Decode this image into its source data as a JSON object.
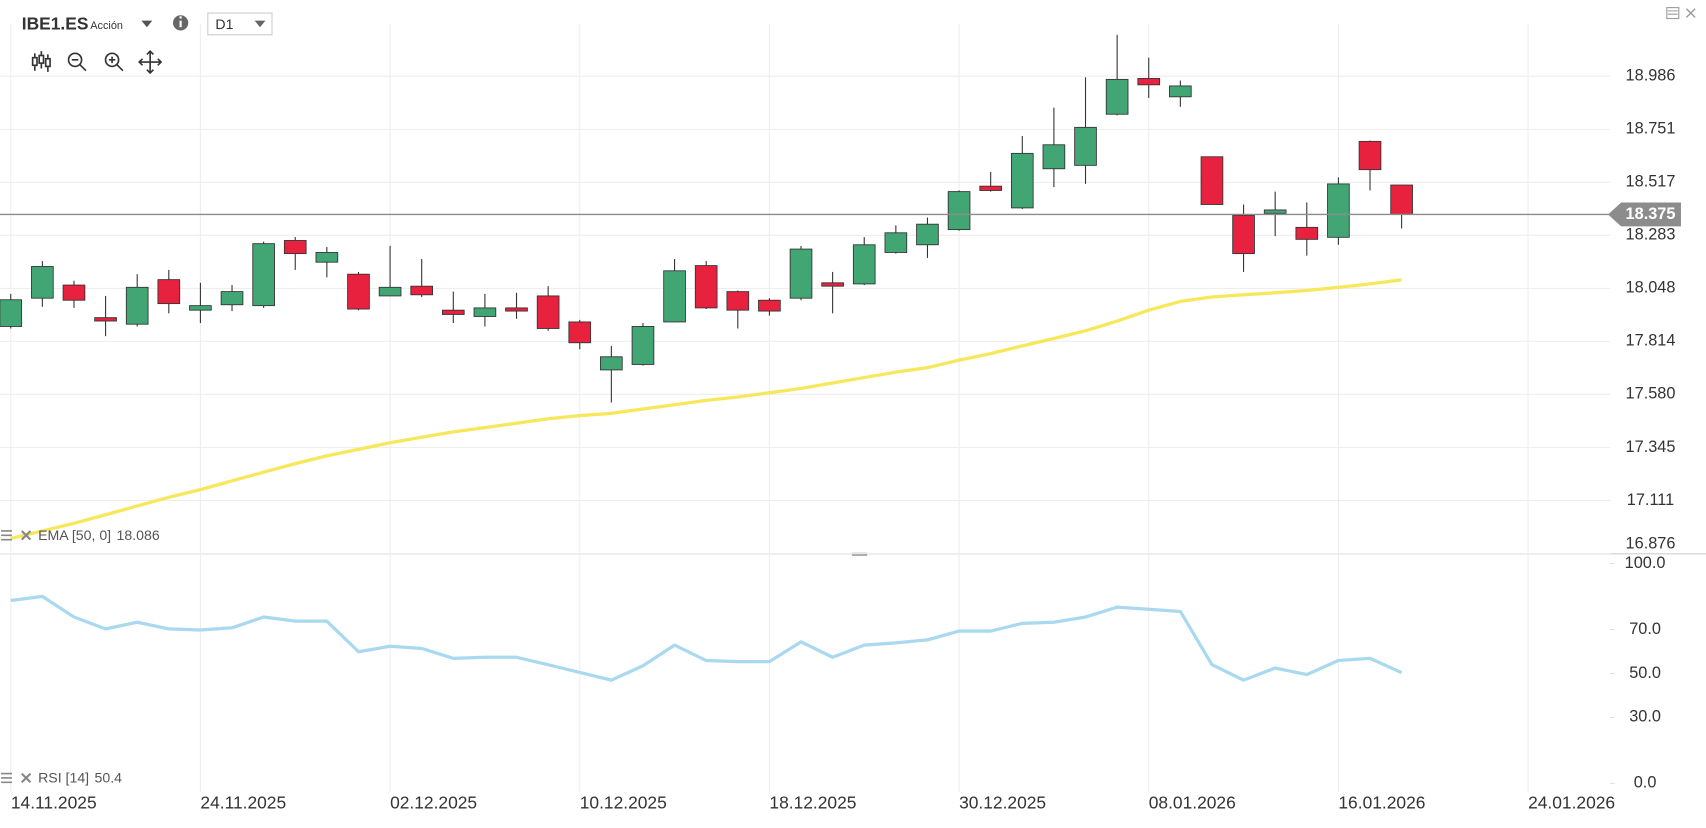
{
  "toolbar": {
    "symbol": "IBE1.ES",
    "kind": "Acción",
    "timeframe": "D1"
  },
  "chart_data": [
    {
      "type": "candlestick",
      "open": [
        17.88,
        18.005,
        18.063,
        17.919,
        17.89,
        18.087,
        17.952,
        17.976,
        17.972,
        18.26,
        18.164,
        18.111,
        18.015,
        18.058,
        17.952,
        17.924,
        17.962,
        18.015,
        17.9,
        17.688,
        17.712,
        17.9,
        18.149,
        18.034,
        17.996,
        18.005,
        18.073,
        18.068,
        18.207,
        18.241,
        18.308,
        18.5,
        18.404,
        18.577,
        18.592,
        18.818,
        18.976,
        18.895,
        18.63,
        18.371,
        18.38,
        18.318,
        18.274,
        18.698,
        18.505
      ],
      "high": [
        18.024,
        18.169,
        18.082,
        18.015,
        18.111,
        18.13,
        18.073,
        18.063,
        18.255,
        18.275,
        18.231,
        18.121,
        18.236,
        18.178,
        18.034,
        18.024,
        18.029,
        18.058,
        17.909,
        17.794,
        17.895,
        18.178,
        18.169,
        18.039,
        18.005,
        18.236,
        18.121,
        18.275,
        18.327,
        18.361,
        18.481,
        18.563,
        18.722,
        18.847,
        18.981,
        19.169,
        19.068,
        18.967,
        18.63,
        18.419,
        18.476,
        18.428,
        18.539,
        18.702,
        18.505
      ],
      "low": [
        17.871,
        17.967,
        17.962,
        17.837,
        17.88,
        17.938,
        17.895,
        17.948,
        17.962,
        18.13,
        18.097,
        17.952,
        18.015,
        18.01,
        17.895,
        17.88,
        17.914,
        17.861,
        17.779,
        17.544,
        17.707,
        17.9,
        17.957,
        17.871,
        17.928,
        17.996,
        17.938,
        18.063,
        18.202,
        18.183,
        18.303,
        18.476,
        18.399,
        18.496,
        18.51,
        18.813,
        18.89,
        18.851,
        18.419,
        18.121,
        18.279,
        18.193,
        18.241,
        18.481,
        18.313
      ],
      "close": [
        17.998,
        18.145,
        17.996,
        17.904,
        18.053,
        17.981,
        17.972,
        18.034,
        18.246,
        18.202,
        18.207,
        17.957,
        18.053,
        18.02,
        17.933,
        17.962,
        17.948,
        17.871,
        17.808,
        17.746,
        17.88,
        18.126,
        17.962,
        17.952,
        17.948,
        18.222,
        18.058,
        18.241,
        18.294,
        18.332,
        18.476,
        18.481,
        18.645,
        18.683,
        18.76,
        18.972,
        18.948,
        18.943,
        18.419,
        18.202,
        18.395,
        18.265,
        18.51,
        18.573,
        18.375
      ],
      "up_color": "#41a673",
      "down_color": "#e8213f",
      "series": [
        {
          "name": "EMA [50, 0]",
          "color": "#f7e75a",
          "values": [
            16.943,
            16.976,
            17.01,
            17.048,
            17.087,
            17.125,
            17.159,
            17.198,
            17.236,
            17.274,
            17.308,
            17.337,
            17.366,
            17.39,
            17.414,
            17.433,
            17.452,
            17.472,
            17.486,
            17.496,
            17.515,
            17.534,
            17.553,
            17.568,
            17.587,
            17.606,
            17.63,
            17.654,
            17.678,
            17.698,
            17.731,
            17.76,
            17.794,
            17.827,
            17.861,
            17.904,
            17.952,
            17.991,
            18.01,
            18.02,
            18.029,
            18.039,
            18.053,
            18.068,
            18.086
          ]
        }
      ],
      "ylim": [
        16.88,
        19.217
      ],
      "yticks": [
        18.986,
        18.751,
        18.517,
        18.283,
        18.048,
        17.814,
        {
          "value": 17.58,
          "label": "17.580"
        },
        17.345,
        17.111,
        16.876
      ],
      "xlim": [
        -0.34,
        50.6
      ],
      "xticks": [
        {
          "value": 0,
          "label": "14.11.2025"
        },
        {
          "value": 6,
          "label": "24.11.2025"
        },
        {
          "value": 12,
          "label": "02.12.2025"
        },
        {
          "value": 18,
          "label": "10.12.2025"
        },
        {
          "value": 24,
          "label": "18.12.2025"
        },
        {
          "value": 30,
          "label": "30.12.2025"
        },
        {
          "value": 36,
          "label": "08.01.2026"
        },
        {
          "value": 42,
          "label": "16.01.2026"
        },
        {
          "value": 48,
          "label": "24.01.2026"
        }
      ],
      "grid": true
    },
    {
      "type": "line",
      "series": [
        {
          "name": "RSI [14]",
          "color": "#a9d9ef",
          "values": [
            83.2,
            85.1,
            75.7,
            70.3,
            73.3,
            70.3,
            69.8,
            70.8,
            75.7,
            73.8,
            73.8,
            59.9,
            62.4,
            61.4,
            56.9,
            57.4,
            57.4,
            54.0,
            50.5,
            47.0,
            53.5,
            62.9,
            55.9,
            55.4,
            55.4,
            64.4,
            57.4,
            62.9,
            63.9,
            65.3,
            69.3,
            69.3,
            72.8,
            73.3,
            75.7,
            80.2,
            79.2,
            78.2,
            54.0,
            47.0,
            52.5,
            49.5,
            55.9,
            56.9,
            50.4
          ]
        }
      ],
      "ylim": [
        0,
        100
      ],
      "yticks": [
        {
          "value": 100,
          "label": "100.0"
        },
        {
          "value": 70,
          "label": "70.0"
        },
        {
          "value": 50,
          "label": "50.0"
        },
        {
          "value": 30,
          "label": "30.0"
        },
        {
          "value": 0,
          "label": "0.0"
        }
      ]
    }
  ]
}
